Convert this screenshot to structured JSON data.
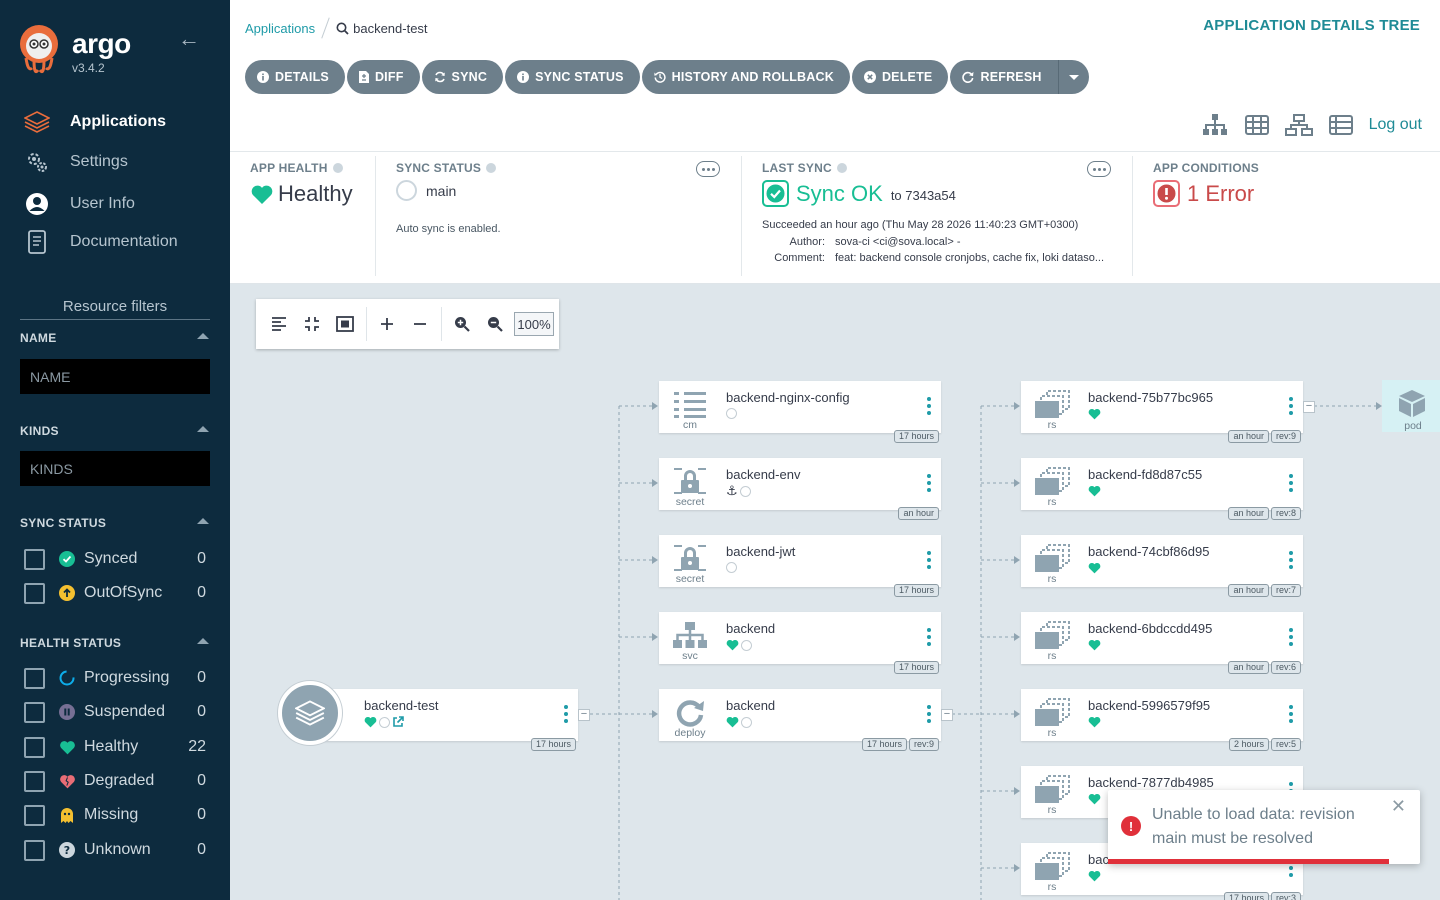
{
  "app": {
    "brand": "argo",
    "version": "v3.4.2"
  },
  "nav": [
    {
      "label": "Applications",
      "icon": "layers-icon",
      "active": true
    },
    {
      "label": "Settings",
      "icon": "gears-icon",
      "active": false
    },
    {
      "label": "User Info",
      "icon": "user-circle-icon",
      "active": false
    },
    {
      "label": "Documentation",
      "icon": "book-icon",
      "active": false
    }
  ],
  "filters": {
    "title": "Resource filters",
    "name": {
      "label": "NAME",
      "placeholder": "NAME"
    },
    "kinds": {
      "label": "KINDS",
      "placeholder": "KINDS"
    },
    "sync_status": {
      "label": "SYNC STATUS",
      "items": [
        {
          "label": "Synced",
          "count": "0",
          "color": "#18be94"
        },
        {
          "label": "OutOfSync",
          "count": "0",
          "color": "#f4c030"
        }
      ]
    },
    "health_status": {
      "label": "HEALTH STATUS",
      "items": [
        {
          "label": "Progressing",
          "count": "0",
          "color": "#0dadea"
        },
        {
          "label": "Suspended",
          "count": "0",
          "color": "#766f94"
        },
        {
          "label": "Healthy",
          "count": "22",
          "color": "#18be94"
        },
        {
          "label": "Degraded",
          "count": "0",
          "color": "#e96d76"
        },
        {
          "label": "Missing",
          "count": "0",
          "color": "#f4c030"
        },
        {
          "label": "Unknown",
          "count": "0",
          "color": "#ccd6dd"
        }
      ]
    }
  },
  "header": {
    "breadcrumb_root": "Applications",
    "breadcrumb_current": "backend-test",
    "title": "APPLICATION DETAILS TREE",
    "logout": "Log out"
  },
  "toolbar": [
    {
      "label": "DETAILS",
      "icon": "info-icon"
    },
    {
      "label": "DIFF",
      "icon": "file-diff-icon"
    },
    {
      "label": "SYNC",
      "icon": "sync-icon"
    },
    {
      "label": "SYNC STATUS",
      "icon": "info-icon"
    },
    {
      "label": "HISTORY AND ROLLBACK",
      "icon": "history-icon"
    },
    {
      "label": "DELETE",
      "icon": "times-circle-icon"
    },
    {
      "label": "REFRESH",
      "icon": "redo-icon"
    }
  ],
  "status": {
    "health": {
      "heading": "APP HEALTH",
      "value": "Healthy"
    },
    "sync": {
      "heading": "SYNC STATUS",
      "branch": "main",
      "note": "Auto sync is enabled."
    },
    "last_sync": {
      "heading": "LAST SYNC",
      "value": "Sync OK",
      "to": "to 7343a54",
      "succeeded": "Succeeded an hour ago (Thu May 28 2026 11:40:23 GMT+0300)",
      "author_label": "Author:",
      "author": "sova-ci <ci@sova.local> -",
      "comment_label": "Comment:",
      "comment": "feat: backend console cronjobs, cache fix, loki dataso..."
    },
    "conditions": {
      "heading": "APP CONDITIONS",
      "value": "1 Error"
    }
  },
  "graph": {
    "zoom": "100%",
    "root": {
      "name": "backend-test",
      "age": "17 hours"
    },
    "middle": [
      {
        "name": "backend-nginx-config",
        "kind": "cm",
        "badges": [
          "17 hours"
        ]
      },
      {
        "name": "backend-env",
        "kind": "secret",
        "badges": [
          "an hour"
        ]
      },
      {
        "name": "backend-jwt",
        "kind": "secret",
        "badges": [
          "17 hours"
        ]
      },
      {
        "name": "backend",
        "kind": "svc",
        "badges": [
          "17 hours"
        ]
      },
      {
        "name": "backend",
        "kind": "deploy",
        "badges": [
          "17 hours",
          "rev:9"
        ]
      }
    ],
    "replicasets": [
      {
        "name": "backend-75b77bc965",
        "kind": "rs",
        "badges": [
          "an hour",
          "rev:9"
        ]
      },
      {
        "name": "backend-fd8d87c55",
        "kind": "rs",
        "badges": [
          "an hour",
          "rev:8"
        ]
      },
      {
        "name": "backend-74cbf86d95",
        "kind": "rs",
        "badges": [
          "an hour",
          "rev:7"
        ]
      },
      {
        "name": "backend-6bdccdd495",
        "kind": "rs",
        "badges": [
          "an hour",
          "rev:6"
        ]
      },
      {
        "name": "backend-5996579f95",
        "kind": "rs",
        "badges": [
          "2 hours",
          "rev:5"
        ]
      },
      {
        "name": "backend-7877db4985",
        "kind": "rs",
        "badges": []
      },
      {
        "name": "bac",
        "kind": "rs",
        "badges": [
          "17 hours",
          "rev:3"
        ]
      }
    ],
    "pod": {
      "kind": "pod"
    }
  },
  "toast": {
    "message": "Unable to load data: revision main must be resolved",
    "progress": 0.9
  }
}
